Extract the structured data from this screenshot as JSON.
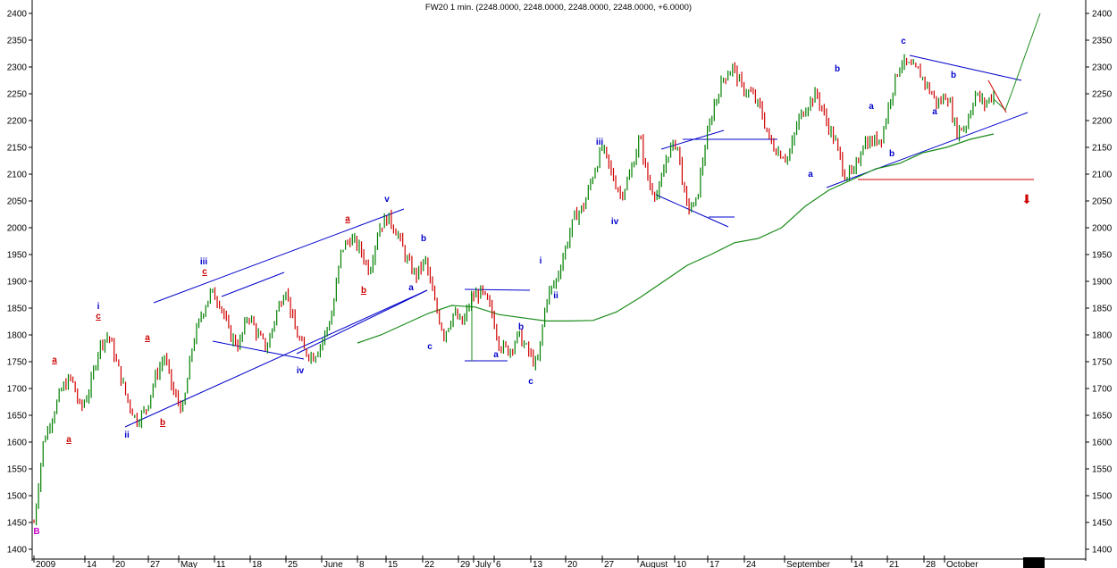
{
  "chart_data": {
    "type": "line",
    "title": "FW20 1 min. (2248.0000, 2248.0000, 2248.0000, 2248.0000, +6.0000)",
    "ylim": [
      1400,
      2400
    ],
    "yticks": [
      1400,
      1450,
      1500,
      1550,
      1600,
      1650,
      1700,
      1750,
      1800,
      1850,
      1900,
      1950,
      2000,
      2050,
      2100,
      2150,
      2200,
      2250,
      2300,
      2350,
      2400
    ],
    "x_tick_labels": [
      "2009",
      "14",
      "20",
      "27",
      "May",
      "11",
      "18",
      "25",
      "June",
      "8",
      "15",
      "22",
      "29",
      "July",
      "6",
      "13",
      "20",
      "27",
      "August",
      "10",
      "17",
      "24",
      "September",
      "14",
      "21",
      "28",
      "October"
    ],
    "grid": false,
    "colors": {
      "up": "#008000",
      "down": "#d00000",
      "ma": "#1a8c1a",
      "trend": "#0000cc",
      "support": "#d00000",
      "wave_blue": "#0000cc",
      "wave_red": "#cc0000",
      "wave_b": "#cc00cc"
    },
    "series": [
      {
        "values": [
          1450,
          1600,
          1650,
          1700,
          1720,
          1660,
          1700,
          1780,
          1800,
          1740,
          1680,
          1640,
          1660,
          1720,
          1760,
          1690,
          1660,
          1780,
          1840,
          1880,
          1860,
          1800,
          1780,
          1840,
          1800,
          1775,
          1840,
          1890,
          1810,
          1770,
          1760,
          1790,
          1840,
          1960,
          1980,
          1960,
          1920,
          2000,
          2020,
          1990,
          1940,
          1910,
          1940,
          1860,
          1800,
          1840,
          1820,
          1870,
          1880,
          1850,
          1780,
          1770,
          1800,
          1770,
          1740,
          1870,
          1900,
          1960,
          2020,
          2040,
          2100,
          2150,
          2100,
          2060,
          2100,
          2170,
          2080,
          2060,
          2140,
          2160,
          2040,
          2040,
          2150,
          2230,
          2280,
          2300,
          2260,
          2250,
          2220,
          2160,
          2140,
          2130,
          2200,
          2230,
          2250,
          2200,
          2160,
          2100,
          2100,
          2160,
          2160,
          2170,
          2250,
          2310,
          2300,
          2290,
          2260,
          2230,
          2250,
          2180,
          2190,
          2250,
          2230,
          2250
        ]
      },
      {
        "name": "MA",
        "values": [
          1785,
          1800,
          1820,
          1840,
          1855,
          1852,
          1838,
          1832,
          1826,
          1826,
          1827,
          1843,
          1870,
          1900,
          1930,
          1950,
          1972,
          1980,
          2000,
          2040,
          2070,
          2090,
          2110,
          2120,
          2140,
          2150,
          2165,
          2175
        ]
      }
    ],
    "annotations": {
      "wave_labels": [
        "B",
        "a",
        "a",
        "i",
        "c",
        "ii",
        "a",
        "b",
        "iii",
        "c",
        "iv",
        "a",
        "b",
        "v",
        "a",
        "b",
        "c",
        "a",
        "b",
        "c",
        "i",
        "ii",
        "iii",
        "iv",
        "a",
        "b",
        "a",
        "b",
        "c",
        "a",
        "b"
      ],
      "signal": "⬇"
    }
  }
}
